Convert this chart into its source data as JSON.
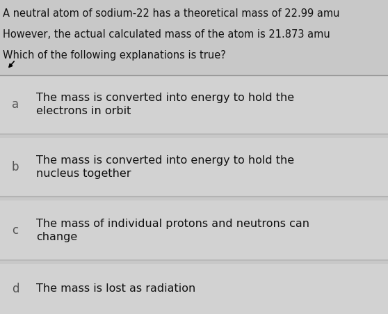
{
  "question_lines": [
    "A neutral atom of sodium-22 has a theoretical mass of 22.99 amu",
    "However, the actual calculated mass of the atom is 21.873 amu",
    "Which of the following explanations is true?"
  ],
  "options": [
    {
      "label": "a",
      "lines": [
        "The mass is converted into energy to hold the",
        "electrons in orbit"
      ]
    },
    {
      "label": "b",
      "lines": [
        "The mass is converted into energy to hold the",
        "nucleus together"
      ]
    },
    {
      "label": "c",
      "lines": [
        "The mass of individual protons and neutrons can",
        "change"
      ]
    },
    {
      "label": "d",
      "lines": [
        "The mass is lost as radiation"
      ]
    }
  ],
  "fig_width": 5.58,
  "fig_height": 4.51,
  "dpi": 100,
  "bg_color": "#c8c8c8",
  "question_bg": "#c8c8c8",
  "option_bg": "#d2d2d2",
  "separator_color": "#aaaaaa",
  "text_color": "#111111",
  "label_color": "#555555",
  "question_font_size": 10.5,
  "option_font_size": 11.5,
  "label_font_size": 12
}
